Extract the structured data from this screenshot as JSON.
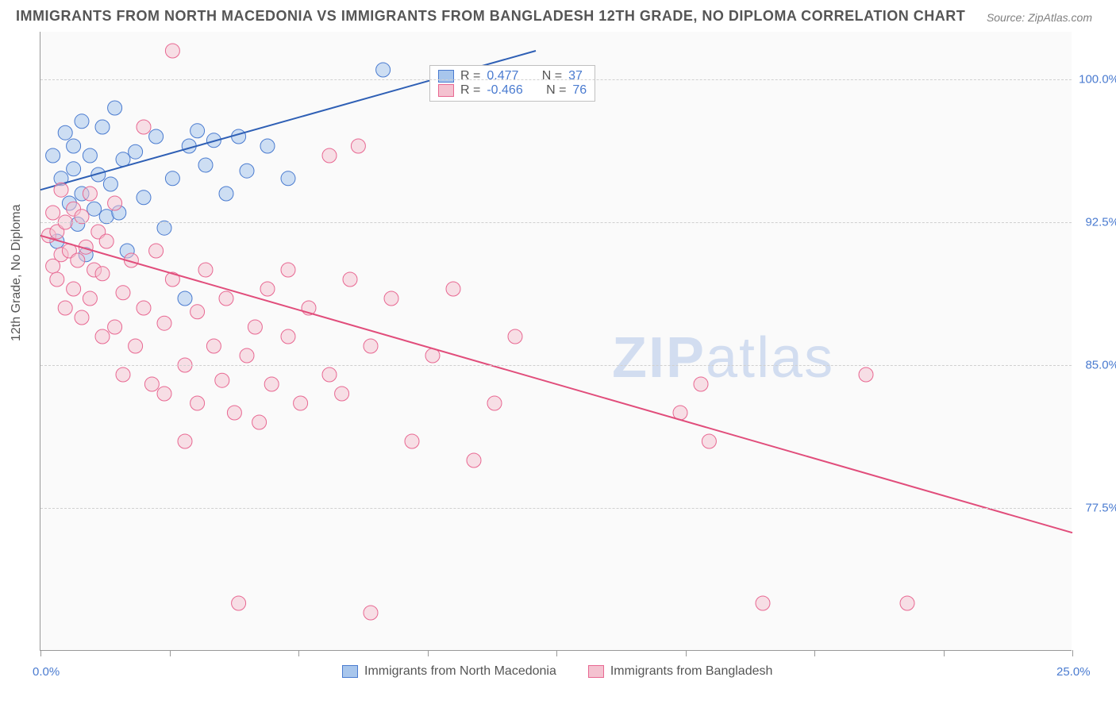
{
  "title": "IMMIGRANTS FROM NORTH MACEDONIA VS IMMIGRANTS FROM BANGLADESH 12TH GRADE, NO DIPLOMA CORRELATION CHART",
  "source": "Source: ZipAtlas.com",
  "ylabel": "12th Grade, No Diploma",
  "watermark_bold": "ZIP",
  "watermark_rest": "atlas",
  "chart": {
    "type": "scatter",
    "background_color": "#fafafa",
    "grid_color": "#d0d0d0",
    "axis_color": "#999999",
    "xlim": [
      0,
      25
    ],
    "ylim": [
      70,
      102.5
    ],
    "ytick_values": [
      77.5,
      85.0,
      92.5,
      100.0
    ],
    "ytick_labels": [
      "77.5%",
      "85.0%",
      "92.5%",
      "100.0%"
    ],
    "xtick_values": [
      0,
      3.125,
      6.25,
      9.375,
      12.5,
      15.625,
      18.75,
      21.875,
      25
    ],
    "xtick_label_left": "0.0%",
    "xtick_label_right": "25.0%",
    "label_color": "#4a7bd0",
    "label_fontsize": 15,
    "series": [
      {
        "name": "Immigrants from North Macedonia",
        "color_fill": "#a8c6ec",
        "color_stroke": "#4a7bd0",
        "marker_radius": 9,
        "fill_opacity": 0.55,
        "R": "0.477",
        "N": "37",
        "trend": {
          "x1": 0,
          "y1": 94.2,
          "x2": 12,
          "y2": 101.5,
          "color": "#2e5fb5",
          "width": 2
        },
        "points": [
          [
            0.3,
            96.0
          ],
          [
            0.4,
            91.5
          ],
          [
            0.5,
            94.8
          ],
          [
            0.6,
            97.2
          ],
          [
            0.7,
            93.5
          ],
          [
            0.8,
            95.3
          ],
          [
            0.8,
            96.5
          ],
          [
            0.9,
            92.4
          ],
          [
            1.0,
            97.8
          ],
          [
            1.0,
            94.0
          ],
          [
            1.1,
            90.8
          ],
          [
            1.2,
            96.0
          ],
          [
            1.3,
            93.2
          ],
          [
            1.4,
            95.0
          ],
          [
            1.5,
            97.5
          ],
          [
            1.6,
            92.8
          ],
          [
            1.7,
            94.5
          ],
          [
            1.8,
            98.5
          ],
          [
            1.9,
            93.0
          ],
          [
            2.0,
            95.8
          ],
          [
            2.1,
            91.0
          ],
          [
            2.3,
            96.2
          ],
          [
            2.5,
            93.8
          ],
          [
            2.8,
            97.0
          ],
          [
            3.0,
            92.2
          ],
          [
            3.2,
            94.8
          ],
          [
            3.5,
            88.5
          ],
          [
            3.6,
            96.5
          ],
          [
            3.8,
            97.3
          ],
          [
            4.0,
            95.5
          ],
          [
            4.2,
            96.8
          ],
          [
            4.5,
            94.0
          ],
          [
            4.8,
            97.0
          ],
          [
            5.0,
            95.2
          ],
          [
            5.5,
            96.5
          ],
          [
            6.0,
            94.8
          ],
          [
            8.3,
            100.5
          ]
        ]
      },
      {
        "name": "Immigrants from Bangladesh",
        "color_fill": "#f4c2d0",
        "color_stroke": "#e86892",
        "marker_radius": 9,
        "fill_opacity": 0.5,
        "R": "-0.466",
        "N": "76",
        "trend": {
          "x1": 0,
          "y1": 91.8,
          "x2": 25,
          "y2": 76.2,
          "color": "#e14d7b",
          "width": 2
        },
        "points": [
          [
            0.2,
            91.8
          ],
          [
            0.3,
            93.0
          ],
          [
            0.3,
            90.2
          ],
          [
            0.4,
            92.0
          ],
          [
            0.4,
            89.5
          ],
          [
            0.5,
            94.2
          ],
          [
            0.5,
            90.8
          ],
          [
            0.6,
            92.5
          ],
          [
            0.6,
            88.0
          ],
          [
            0.7,
            91.0
          ],
          [
            0.8,
            93.2
          ],
          [
            0.8,
            89.0
          ],
          [
            0.9,
            90.5
          ],
          [
            1.0,
            92.8
          ],
          [
            1.0,
            87.5
          ],
          [
            1.1,
            91.2
          ],
          [
            1.2,
            94.0
          ],
          [
            1.2,
            88.5
          ],
          [
            1.3,
            90.0
          ],
          [
            1.4,
            92.0
          ],
          [
            1.5,
            86.5
          ],
          [
            1.5,
            89.8
          ],
          [
            1.6,
            91.5
          ],
          [
            1.8,
            87.0
          ],
          [
            1.8,
            93.5
          ],
          [
            2.0,
            88.8
          ],
          [
            2.0,
            84.5
          ],
          [
            2.2,
            90.5
          ],
          [
            2.3,
            86.0
          ],
          [
            2.5,
            97.5
          ],
          [
            2.5,
            88.0
          ],
          [
            2.7,
            84.0
          ],
          [
            2.8,
            91.0
          ],
          [
            3.0,
            87.2
          ],
          [
            3.0,
            83.5
          ],
          [
            3.2,
            89.5
          ],
          [
            3.2,
            101.5
          ],
          [
            3.5,
            85.0
          ],
          [
            3.5,
            81.0
          ],
          [
            3.8,
            87.8
          ],
          [
            3.8,
            83.0
          ],
          [
            4.0,
            90.0
          ],
          [
            4.2,
            86.0
          ],
          [
            4.4,
            84.2
          ],
          [
            4.5,
            88.5
          ],
          [
            4.7,
            82.5
          ],
          [
            4.8,
            72.5
          ],
          [
            5.0,
            85.5
          ],
          [
            5.2,
            87.0
          ],
          [
            5.3,
            82.0
          ],
          [
            5.5,
            89.0
          ],
          [
            5.6,
            84.0
          ],
          [
            6.0,
            86.5
          ],
          [
            6.0,
            90.0
          ],
          [
            6.3,
            83.0
          ],
          [
            6.5,
            88.0
          ],
          [
            7.0,
            84.5
          ],
          [
            7.0,
            96.0
          ],
          [
            7.3,
            83.5
          ],
          [
            7.5,
            89.5
          ],
          [
            7.7,
            96.5
          ],
          [
            8.0,
            86.0
          ],
          [
            8.0,
            72.0
          ],
          [
            8.5,
            88.5
          ],
          [
            9.0,
            81.0
          ],
          [
            9.5,
            85.5
          ],
          [
            10.0,
            89.0
          ],
          [
            10.5,
            80.0
          ],
          [
            11.0,
            83.0
          ],
          [
            11.5,
            86.5
          ],
          [
            15.5,
            82.5
          ],
          [
            16.0,
            84.0
          ],
          [
            16.2,
            81.0
          ],
          [
            17.5,
            72.5
          ],
          [
            20.0,
            84.5
          ],
          [
            21.0,
            72.5
          ]
        ]
      }
    ]
  },
  "legend_top": {
    "r_label": "R =",
    "n_label": "N ="
  },
  "legend_bottom": {
    "items": [
      "Immigrants from North Macedonia",
      "Immigrants from Bangladesh"
    ]
  }
}
